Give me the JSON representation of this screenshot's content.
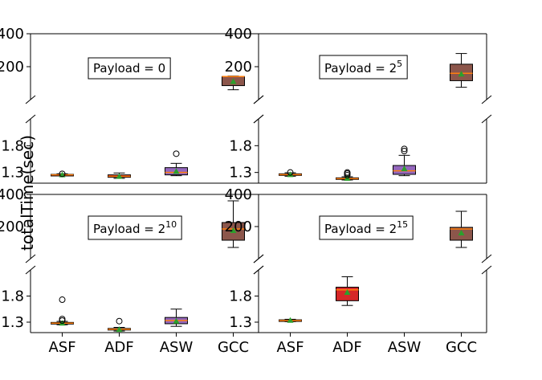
{
  "chart_data": {
    "type": "box",
    "ylabel": "totalTime(sec)",
    "categories": [
      "ASF",
      "ADF",
      "ASW",
      "GCC"
    ],
    "colors": {
      "ASF": "#d62728",
      "ADF": "#d62728",
      "ASW": "#9467bd",
      "GCC": "#8c564b",
      "median": "#ff7f0e",
      "mean": "#2ca02c"
    },
    "panels": [
      {
        "label": "Payload = 0",
        "label_base": "Payload = 0",
        "label_sup": "",
        "upper": {
          "ylim": [
            0,
            400
          ],
          "ticks": [
            200,
            400
          ]
        },
        "lower": {
          "ylim": [
            1.1,
            2.3
          ],
          "ticks": [
            1.3,
            1.8
          ]
        },
        "boxes": [
          {
            "category": "ASF",
            "whislo": 1.24,
            "q1": 1.245,
            "median": 1.255,
            "q3": 1.265,
            "whishi": 1.275,
            "mean": 1.255,
            "fliers": [
              1.275
            ]
          },
          {
            "category": "ADF",
            "whislo": 1.19,
            "q1": 1.21,
            "median": 1.23,
            "q3": 1.255,
            "whishi": 1.29,
            "mean": 1.225,
            "fliers": []
          },
          {
            "category": "ASW",
            "whislo": 1.24,
            "q1": 1.255,
            "median": 1.3,
            "q3": 1.39,
            "whishi": 1.47,
            "mean": 1.32,
            "fliers": [
              1.65
            ]
          },
          {
            "category": "GCC",
            "whislo": 60,
            "q1": 85,
            "median": 140,
            "q3": 140,
            "whishi": 143,
            "mean": 110,
            "fliers": []
          }
        ]
      },
      {
        "label": "Payload = 25",
        "label_base": "Payload = 2",
        "label_sup": "5",
        "upper": {
          "ylim": [
            0,
            400
          ],
          "ticks": [
            200,
            400
          ]
        },
        "lower": {
          "ylim": [
            1.1,
            2.3
          ],
          "ticks": [
            1.3,
            1.8
          ]
        },
        "boxes": [
          {
            "category": "ASF",
            "whislo": 1.23,
            "q1": 1.245,
            "median": 1.26,
            "q3": 1.275,
            "whishi": 1.295,
            "mean": 1.26,
            "fliers": [
              1.3
            ]
          },
          {
            "category": "ADF",
            "whislo": 1.16,
            "q1": 1.17,
            "median": 1.185,
            "q3": 1.2,
            "whishi": 1.22,
            "mean": 1.19,
            "fliers": [
              1.25,
              1.28,
              1.3
            ]
          },
          {
            "category": "ASW",
            "whislo": 1.24,
            "q1": 1.265,
            "median": 1.33,
            "q3": 1.43,
            "whishi": 1.62,
            "mean": 1.37,
            "fliers": [
              1.7,
              1.74
            ]
          },
          {
            "category": "GCC",
            "whislo": 75,
            "q1": 115,
            "median": 160,
            "q3": 215,
            "whishi": 280,
            "mean": 155,
            "fliers": []
          }
        ]
      },
      {
        "label": "Payload = 210",
        "label_base": "Payload = 2",
        "label_sup": "10",
        "upper": {
          "ylim": [
            0,
            400
          ],
          "ticks": [
            200,
            400
          ]
        },
        "lower": {
          "ylim": [
            1.1,
            2.3
          ],
          "ticks": [
            1.3,
            1.8
          ]
        },
        "boxes": [
          {
            "category": "ASF",
            "whislo": 1.25,
            "q1": 1.265,
            "median": 1.28,
            "q3": 1.295,
            "whishi": 1.315,
            "mean": 1.28,
            "fliers": [
              1.33,
              1.36,
              1.73
            ]
          },
          {
            "category": "ADF",
            "whislo": 1.13,
            "q1": 1.15,
            "median": 1.165,
            "q3": 1.18,
            "whishi": 1.2,
            "mean": 1.16,
            "fliers": [
              1.32
            ]
          },
          {
            "category": "ASW",
            "whislo": 1.22,
            "q1": 1.27,
            "median": 1.33,
            "q3": 1.39,
            "whishi": 1.55,
            "mean": 1.32,
            "fliers": []
          },
          {
            "category": "GCC",
            "whislo": 70,
            "q1": 115,
            "median": 185,
            "q3": 225,
            "whishi": 360,
            "mean": 175,
            "fliers": []
          }
        ]
      },
      {
        "label": "Payload = 215",
        "label_base": "Payload = 2",
        "label_sup": "15",
        "upper": {
          "ylim": [
            0,
            400
          ],
          "ticks": [
            200,
            400
          ]
        },
        "lower": {
          "ylim": [
            1.1,
            2.3
          ],
          "ticks": [
            1.3,
            1.8
          ]
        },
        "boxes": [
          {
            "category": "ASF",
            "whislo": 1.31,
            "q1": 1.32,
            "median": 1.33,
            "q3": 1.345,
            "whishi": 1.355,
            "mean": 1.335,
            "fliers": []
          },
          {
            "category": "ADF",
            "whislo": 1.62,
            "q1": 1.71,
            "median": 1.92,
            "q3": 1.97,
            "whishi": 2.17,
            "mean": 1.87,
            "fliers": []
          },
          {
            "category": "ASW",
            "whislo": null,
            "q1": null,
            "median": null,
            "q3": null,
            "whishi": null,
            "mean": null,
            "fliers": []
          },
          {
            "category": "GCC",
            "whislo": 70,
            "q1": 115,
            "median": 185,
            "q3": 195,
            "whishi": 295,
            "mean": 160,
            "fliers": []
          }
        ]
      }
    ]
  }
}
